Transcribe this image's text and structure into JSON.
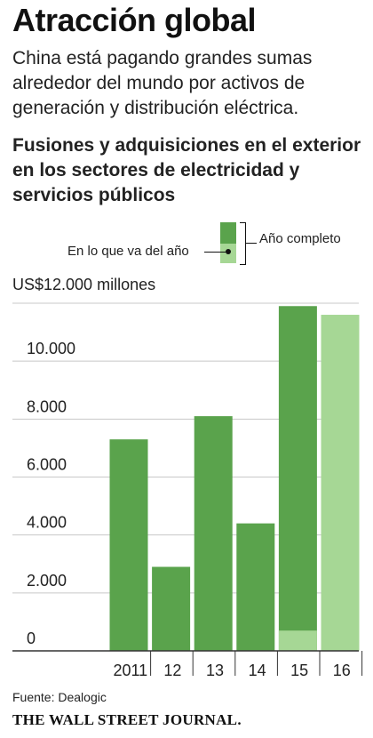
{
  "header": {
    "title": "Atracción global",
    "subtitle": "China está pagando grandes sumas alrededor del mundo por activos de generación y distribución eléctrica."
  },
  "legend": {
    "ytd_label": "En lo que va del año",
    "full_label": "Año completo"
  },
  "footer": {
    "source": "Fuente: Dealogic",
    "masthead": "THE WALL STREET JOURNAL."
  },
  "colors": {
    "full_year": "#5aa34c",
    "year_to_date": "#a6d795",
    "gridline": "#c8c8c8",
    "axis": "#333333"
  },
  "chart_data": {
    "type": "bar",
    "title": "Fusiones y adquisiciones en el exterior en los sectores de electricidad y servicios públicos",
    "unit_label": "US$12.000 millones",
    "categories": [
      "2011",
      "12",
      "13",
      "14",
      "15",
      "16"
    ],
    "series": [
      {
        "name": "Año completo",
        "values": [
          7300,
          2900,
          8100,
          4400,
          11900,
          null
        ]
      },
      {
        "name": "En lo que va del año",
        "values": [
          null,
          null,
          null,
          null,
          700,
          11600
        ]
      }
    ],
    "ylim": [
      0,
      12000
    ],
    "y_ticks": [
      0,
      2000,
      4000,
      6000,
      8000,
      10000,
      12000
    ],
    "y_tick_labels": [
      "0",
      "2.000",
      "4.000",
      "6.000",
      "8.000",
      "10.000",
      ""
    ],
    "grid": true
  }
}
